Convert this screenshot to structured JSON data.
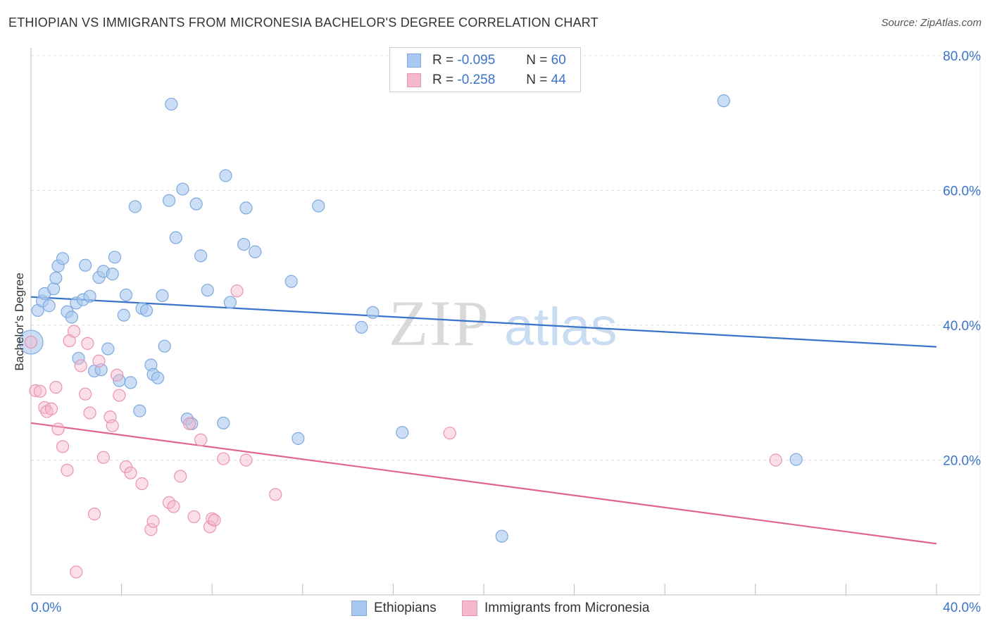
{
  "title": "ETHIOPIAN VS IMMIGRANTS FROM MICRONESIA BACHELOR'S DEGREE CORRELATION CHART",
  "source": "Source: ZipAtlas.com",
  "watermark": {
    "zip": "ZIP",
    "atlas": "atlas"
  },
  "colors": {
    "blue_fill": "#a9c8f0",
    "blue_stroke": "#7fa9dc",
    "blue_line": "#3a74c9",
    "pink_fill": "#f5b9cc",
    "pink_stroke": "#ea93b0",
    "pink_line": "#e0658f",
    "axis_label": "#3a74c9",
    "grid": "#dddddd"
  },
  "legend_top": [
    {
      "r_label": "R =",
      "r_value": "-0.095",
      "n_label": "N =",
      "n_value": "60"
    },
    {
      "r_label": "R =",
      "r_value": "-0.258",
      "n_label": "N =",
      "n_value": "44"
    }
  ],
  "legend_bottom": [
    "Ethiopians",
    "Immigrants from Micronesia"
  ],
  "chart_data": {
    "type": "scatter",
    "title": "ETHIOPIAN VS IMMIGRANTS FROM MICRONESIA BACHELOR'S DEGREE CORRELATION CHART",
    "xlabel": "",
    "ylabel": "Bachelor's Degree",
    "xlim": [
      0,
      40
    ],
    "ylim": [
      0,
      80
    ],
    "x_tick_labels": [
      "0.0%",
      "40.0%"
    ],
    "y_ticks": [
      20,
      40,
      60,
      80
    ],
    "y_tick_labels": [
      "20.0%",
      "40.0%",
      "60.0%",
      "80.0%"
    ],
    "series": [
      {
        "name": "Ethiopians",
        "R": -0.095,
        "N": 60,
        "trend": {
          "x": [
            0,
            40
          ],
          "y": [
            44.2,
            36.8
          ]
        },
        "points": [
          [
            0.0,
            37.5
          ],
          [
            0.3,
            42.2
          ],
          [
            0.5,
            43.6
          ],
          [
            0.6,
            44.7
          ],
          [
            0.8,
            42.9
          ],
          [
            1.0,
            45.4
          ],
          [
            1.1,
            47.0
          ],
          [
            1.2,
            48.8
          ],
          [
            1.4,
            49.9
          ],
          [
            1.6,
            42.0
          ],
          [
            1.8,
            41.2
          ],
          [
            2.0,
            43.3
          ],
          [
            2.1,
            35.1
          ],
          [
            2.3,
            43.8
          ],
          [
            2.4,
            48.9
          ],
          [
            2.6,
            44.3
          ],
          [
            2.8,
            33.2
          ],
          [
            3.0,
            47.1
          ],
          [
            3.1,
            33.4
          ],
          [
            3.2,
            48.0
          ],
          [
            3.4,
            36.5
          ],
          [
            3.6,
            47.6
          ],
          [
            3.7,
            50.1
          ],
          [
            3.9,
            31.8
          ],
          [
            4.1,
            41.5
          ],
          [
            4.2,
            44.5
          ],
          [
            4.4,
            31.5
          ],
          [
            4.6,
            57.6
          ],
          [
            4.8,
            27.3
          ],
          [
            4.9,
            42.5
          ],
          [
            5.1,
            42.2
          ],
          [
            5.3,
            34.1
          ],
          [
            5.4,
            32.7
          ],
          [
            5.6,
            32.2
          ],
          [
            5.8,
            44.4
          ],
          [
            5.9,
            36.9
          ],
          [
            6.1,
            58.5
          ],
          [
            6.2,
            72.8
          ],
          [
            6.4,
            53.0
          ],
          [
            6.7,
            60.2
          ],
          [
            6.9,
            26.1
          ],
          [
            7.1,
            25.4
          ],
          [
            7.3,
            58.0
          ],
          [
            7.5,
            50.3
          ],
          [
            7.8,
            45.2
          ],
          [
            8.5,
            25.5
          ],
          [
            8.6,
            62.2
          ],
          [
            8.8,
            43.4
          ],
          [
            9.4,
            52.0
          ],
          [
            9.5,
            57.4
          ],
          [
            9.9,
            50.9
          ],
          [
            11.5,
            46.5
          ],
          [
            11.8,
            23.2
          ],
          [
            12.7,
            57.7
          ],
          [
            14.6,
            39.7
          ],
          [
            15.1,
            41.9
          ],
          [
            16.4,
            24.1
          ],
          [
            20.8,
            8.7
          ],
          [
            30.6,
            73.3
          ],
          [
            33.8,
            20.1
          ]
        ]
      },
      {
        "name": "Immigrants from Micronesia",
        "R": -0.258,
        "N": 44,
        "trend": {
          "x": [
            0,
            40
          ],
          "y": [
            25.5,
            7.6
          ]
        },
        "points": [
          [
            0.0,
            37.5
          ],
          [
            0.2,
            30.3
          ],
          [
            0.4,
            30.2
          ],
          [
            0.6,
            27.8
          ],
          [
            0.7,
            27.2
          ],
          [
            0.9,
            27.6
          ],
          [
            1.1,
            30.8
          ],
          [
            1.2,
            24.6
          ],
          [
            1.4,
            22.0
          ],
          [
            1.6,
            18.5
          ],
          [
            1.7,
            37.7
          ],
          [
            1.9,
            39.1
          ],
          [
            2.0,
            3.4
          ],
          [
            2.2,
            34.0
          ],
          [
            2.4,
            29.8
          ],
          [
            2.5,
            37.3
          ],
          [
            2.6,
            27.0
          ],
          [
            2.8,
            12.0
          ],
          [
            3.0,
            34.7
          ],
          [
            3.2,
            20.4
          ],
          [
            3.5,
            26.4
          ],
          [
            3.6,
            25.1
          ],
          [
            3.8,
            32.6
          ],
          [
            3.9,
            29.6
          ],
          [
            4.2,
            19.0
          ],
          [
            4.4,
            18.1
          ],
          [
            4.9,
            16.5
          ],
          [
            5.3,
            9.7
          ],
          [
            5.4,
            10.9
          ],
          [
            6.1,
            13.7
          ],
          [
            6.3,
            13.1
          ],
          [
            6.6,
            17.6
          ],
          [
            7.0,
            25.4
          ],
          [
            7.2,
            11.6
          ],
          [
            7.5,
            23.0
          ],
          [
            7.9,
            10.1
          ],
          [
            8.0,
            11.3
          ],
          [
            8.1,
            11.1
          ],
          [
            8.5,
            20.2
          ],
          [
            9.1,
            45.1
          ],
          [
            9.5,
            20.0
          ],
          [
            10.8,
            14.9
          ],
          [
            18.5,
            24.0
          ],
          [
            32.9,
            20.0
          ]
        ]
      }
    ]
  }
}
